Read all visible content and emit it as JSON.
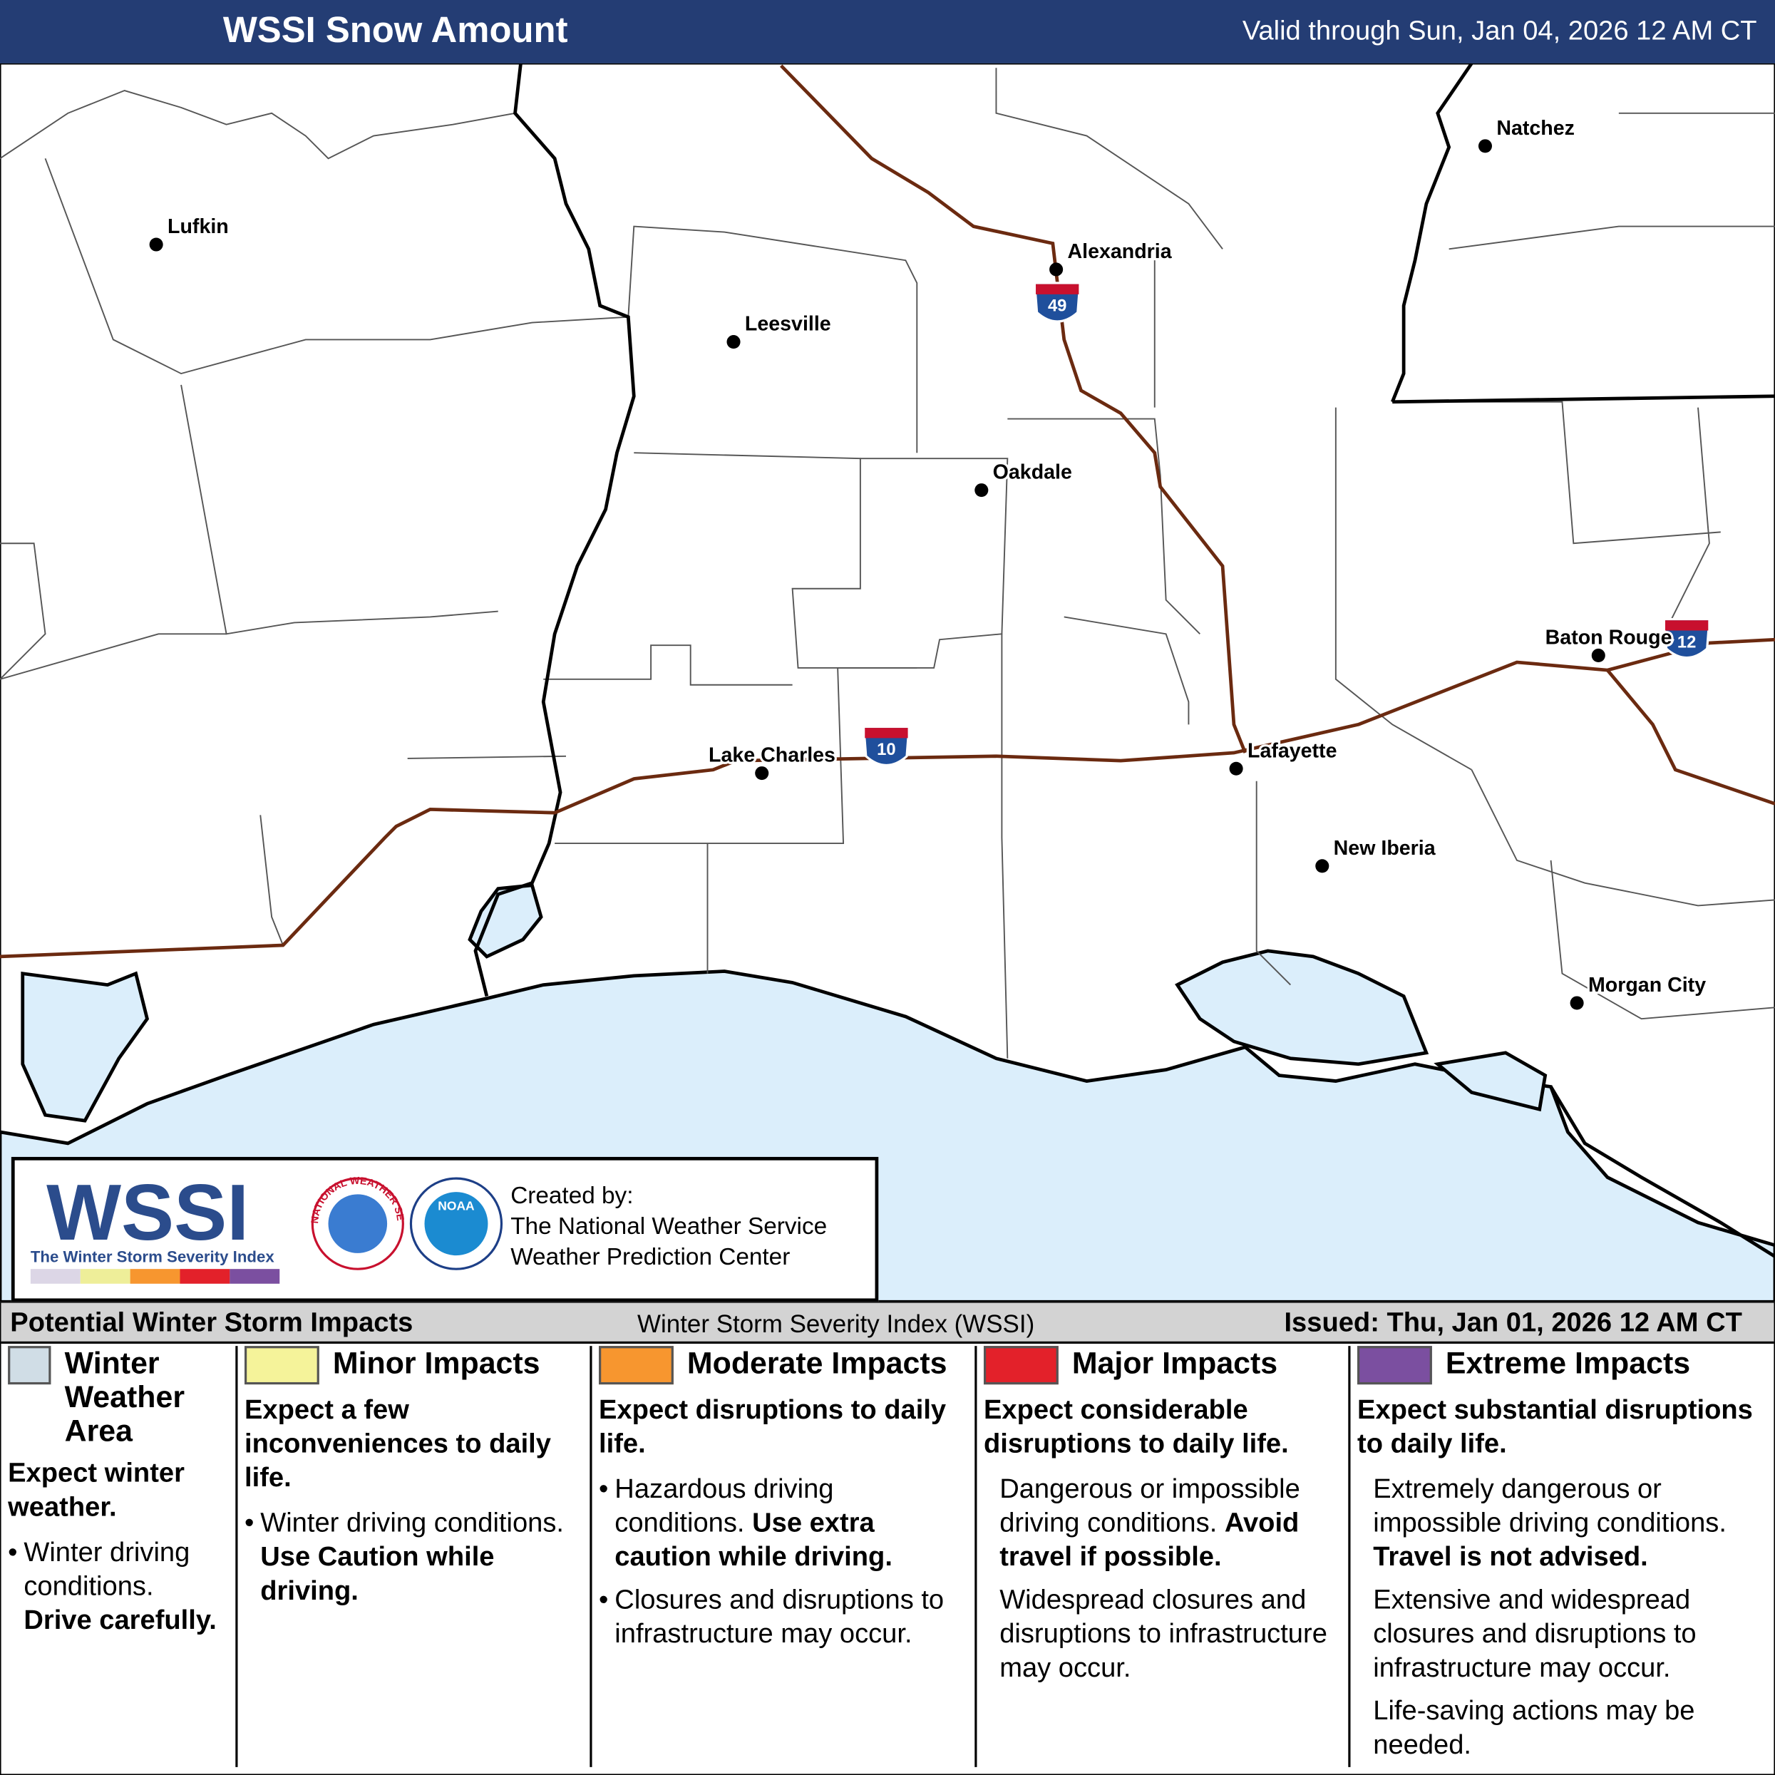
{
  "header": {
    "title": "WSSI Snow Amount",
    "valid": "Valid through Sun, Jan 04, 2026 12 AM CT"
  },
  "map": {
    "cities": [
      "Lufkin",
      "Leesville",
      "Alexandria",
      "Oakdale",
      "Lake Charles",
      "Lafayette",
      "New Iberia",
      "Baton Rouge",
      "Morgan City",
      "Natchez"
    ],
    "shields": [
      "49",
      "10",
      "12"
    ]
  },
  "credit": {
    "logo": "WSSI",
    "logo_sub": "The Winter Storm Severity Index",
    "logo_colors": [
      "#dcd6e6",
      "#eeee99",
      "#f7962f",
      "#e3212a",
      "#7b4fa0"
    ],
    "nws_ring": "NATIONAL WEATHER SERVICE",
    "noaa": "NOAA",
    "created": [
      "Created by:",
      "The National Weather Service",
      "Weather Prediction Center"
    ]
  },
  "legend": {
    "title": "Potential Winter Storm Impacts",
    "subtitle": "Winter Storm Severity Index (WSSI)",
    "issued": "Issued: Thu, Jan 01, 2026 12 AM CT",
    "columns": [
      {
        "name": "Winter Weather Area",
        "color": "#d0dde6",
        "headline": "Expect winter weather.",
        "bulleted": true,
        "items": [
          {
            "text": "Winter driving conditions.",
            "bold": "Drive carefully."
          }
        ]
      },
      {
        "name": "Minor Impacts",
        "color": "#f5f39a",
        "headline": "Expect a few inconveniences to daily life.",
        "bulleted": true,
        "items": [
          {
            "text": "Winter driving conditions.",
            "bold": "Use Caution while driving."
          }
        ]
      },
      {
        "name": "Moderate Impacts",
        "color": "#f7962f",
        "headline": "Expect disruptions to daily life.",
        "bulleted": true,
        "items": [
          {
            "text": "Hazardous driving conditions.",
            "bold": "Use extra caution while driving."
          },
          {
            "text": "Closures and disruptions to infrastructure may occur."
          }
        ]
      },
      {
        "name": "Major Impacts",
        "color": "#e3212a",
        "headline": "Expect considerable disruptions to daily life.",
        "bulleted": false,
        "items": [
          {
            "text": "Dangerous or impossible driving conditions.",
            "bold": "Avoid travel if possible."
          },
          {
            "text": "Widespread closures and disruptions to infrastructure may occur."
          }
        ]
      },
      {
        "name": "Extreme Impacts",
        "color": "#7b4fa0",
        "headline": "Expect substantial disruptions to daily life.",
        "bulleted": false,
        "items": [
          {
            "text": "Extremely dangerous or impossible driving conditions.",
            "bold": "Travel is not advised."
          },
          {
            "text": "Extensive and widespread closures and disruptions to infrastructure may occur."
          },
          {
            "text": "Life-saving actions may be needed."
          }
        ]
      }
    ]
  }
}
